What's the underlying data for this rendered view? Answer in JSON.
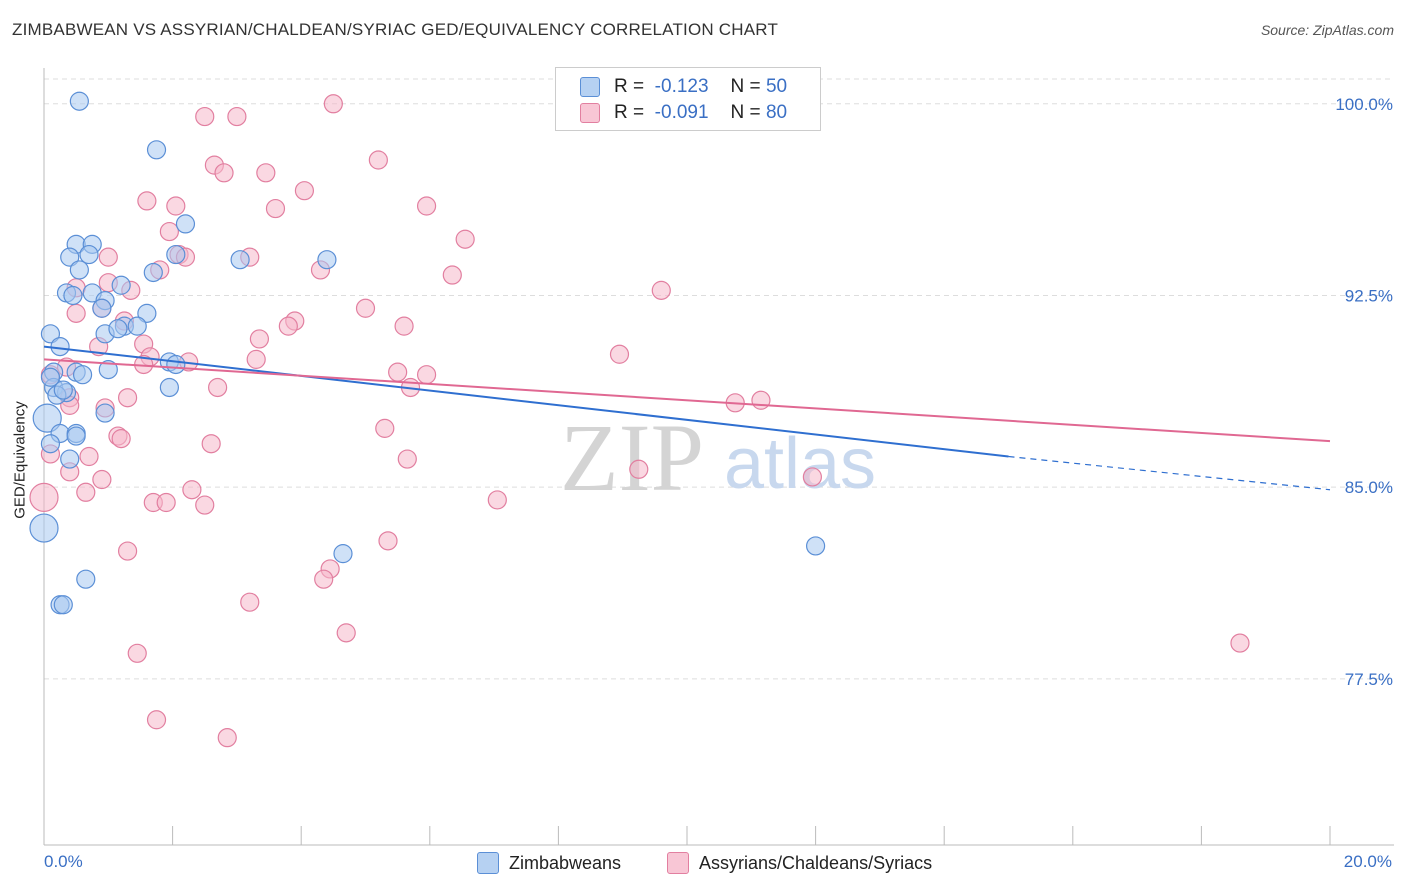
{
  "header": {
    "title": "ZIMBABWEAN VS ASSYRIAN/CHALDEAN/SYRIAC GED/EQUIVALENCY CORRELATION CHART",
    "source": "Source: ZipAtlas.com"
  },
  "watermark": {
    "zip": "ZIP",
    "atlas": "atlas"
  },
  "colors": {
    "blue_fill": "#a8c8f0",
    "blue_stroke": "#5b8fd6",
    "blue_line": "#2f6fd0",
    "pink_fill": "#f6b8cb",
    "pink_stroke": "#e27fa0",
    "pink_line": "#e06892",
    "axis_text": "#3a6fc4",
    "grid": "#dddddd"
  },
  "legend_top": {
    "rows": [
      {
        "r_label": "R =",
        "r_value": "-0.123",
        "n_label": "N =",
        "n_value": "50"
      },
      {
        "r_label": "R =",
        "r_value": "-0.091",
        "n_label": "N =",
        "n_value": "80"
      }
    ]
  },
  "legend_bottom": {
    "items": [
      "Zimbabweans",
      "Assyrians/Chaldeans/Syriacs"
    ]
  },
  "chart_data": {
    "type": "scatter",
    "title": "ZIMBABWEAN VS ASSYRIAN/CHALDEAN/SYRIAC GED/EQUIVALENCY CORRELATION CHART",
    "xlabel": "",
    "ylabel": "GED/Equivalency",
    "xlim": [
      0,
      20
    ],
    "ylim": [
      71.0,
      101.4
    ],
    "x_tick_labels": [
      "0.0%",
      "20.0%"
    ],
    "y_ticks": [
      100.0,
      92.5,
      85.0,
      77.5
    ],
    "y_tick_labels": [
      "100.0%",
      "92.5%",
      "85.0%",
      "77.5%"
    ],
    "grid": true,
    "legend_position": "top-center",
    "series": [
      {
        "name": "Zimbabweans",
        "r": -0.123,
        "n": 50,
        "trend": {
          "x0": 0.0,
          "y0": 90.5,
          "x1": 15.0,
          "y1": 86.2,
          "dash_to_x": 20.0,
          "dash_to_y": 84.9
        },
        "points": [
          [
            0.55,
            100.1
          ],
          [
            1.75,
            98.2
          ],
          [
            0.5,
            94.5
          ],
          [
            0.75,
            94.5
          ],
          [
            0.4,
            94.0
          ],
          [
            0.7,
            94.1
          ],
          [
            2.2,
            95.3
          ],
          [
            2.05,
            94.1
          ],
          [
            3.05,
            93.9
          ],
          [
            4.4,
            93.9
          ],
          [
            1.7,
            93.4
          ],
          [
            0.55,
            93.5
          ],
          [
            0.35,
            92.6
          ],
          [
            0.75,
            92.6
          ],
          [
            0.95,
            92.3
          ],
          [
            0.9,
            92.0
          ],
          [
            1.2,
            92.9
          ],
          [
            1.6,
            91.8
          ],
          [
            0.1,
            91.0
          ],
          [
            1.25,
            91.3
          ],
          [
            0.95,
            91.0
          ],
          [
            1.15,
            91.2
          ],
          [
            0.25,
            90.5
          ],
          [
            0.5,
            89.5
          ],
          [
            1.0,
            89.6
          ],
          [
            1.95,
            89.9
          ],
          [
            0.15,
            89.5
          ],
          [
            0.15,
            88.9
          ],
          [
            0.35,
            88.7
          ],
          [
            0.2,
            88.6
          ],
          [
            1.95,
            88.9
          ],
          [
            0.95,
            87.9
          ],
          [
            0.05,
            87.7
          ],
          [
            0.25,
            87.1
          ],
          [
            0.5,
            87.1
          ],
          [
            0.5,
            87.0
          ],
          [
            0.1,
            86.7
          ],
          [
            0.4,
            86.1
          ],
          [
            0.0,
            83.4
          ],
          [
            4.65,
            82.4
          ],
          [
            12.0,
            82.7
          ],
          [
            0.65,
            81.4
          ],
          [
            0.25,
            80.4
          ],
          [
            0.3,
            80.4
          ],
          [
            0.1,
            89.3
          ],
          [
            0.45,
            92.5
          ],
          [
            1.45,
            91.3
          ],
          [
            2.05,
            89.8
          ],
          [
            0.3,
            88.8
          ],
          [
            0.6,
            89.4
          ]
        ]
      },
      {
        "name": "Assyrians/Chaldeans/Syriacs",
        "r": -0.091,
        "n": 80,
        "trend": {
          "x0": 0.0,
          "y0": 90.0,
          "x1": 20.0,
          "y1": 86.8
        },
        "points": [
          [
            4.5,
            100.0
          ],
          [
            2.5,
            99.5
          ],
          [
            3.0,
            99.5
          ],
          [
            5.2,
            97.8
          ],
          [
            2.65,
            97.6
          ],
          [
            2.8,
            97.3
          ],
          [
            3.45,
            97.3
          ],
          [
            4.05,
            96.6
          ],
          [
            1.6,
            96.2
          ],
          [
            2.05,
            96.0
          ],
          [
            3.6,
            95.9
          ],
          [
            5.95,
            96.0
          ],
          [
            1.95,
            95.0
          ],
          [
            6.55,
            94.7
          ],
          [
            2.1,
            94.1
          ],
          [
            2.2,
            94.0
          ],
          [
            3.2,
            94.0
          ],
          [
            1.0,
            94.0
          ],
          [
            1.8,
            93.5
          ],
          [
            4.3,
            93.5
          ],
          [
            6.35,
            93.3
          ],
          [
            1.0,
            93.0
          ],
          [
            1.35,
            92.7
          ],
          [
            0.5,
            92.8
          ],
          [
            9.6,
            92.7
          ],
          [
            5.0,
            92.0
          ],
          [
            0.9,
            92.0
          ],
          [
            0.5,
            91.8
          ],
          [
            1.25,
            91.5
          ],
          [
            3.9,
            91.5
          ],
          [
            3.8,
            91.3
          ],
          [
            5.6,
            91.3
          ],
          [
            3.35,
            90.8
          ],
          [
            0.85,
            90.5
          ],
          [
            1.55,
            90.6
          ],
          [
            8.95,
            90.2
          ],
          [
            1.65,
            90.1
          ],
          [
            2.25,
            89.9
          ],
          [
            1.55,
            89.8
          ],
          [
            0.35,
            89.7
          ],
          [
            0.1,
            89.4
          ],
          [
            5.5,
            89.5
          ],
          [
            5.95,
            89.4
          ],
          [
            2.7,
            88.9
          ],
          [
            5.7,
            88.9
          ],
          [
            0.4,
            88.5
          ],
          [
            1.3,
            88.5
          ],
          [
            0.4,
            88.2
          ],
          [
            0.95,
            88.1
          ],
          [
            10.75,
            88.3
          ],
          [
            11.15,
            88.4
          ],
          [
            1.15,
            87.0
          ],
          [
            1.2,
            86.9
          ],
          [
            5.3,
            87.3
          ],
          [
            2.6,
            86.7
          ],
          [
            0.7,
            86.2
          ],
          [
            5.65,
            86.1
          ],
          [
            0.1,
            86.3
          ],
          [
            0.4,
            85.6
          ],
          [
            0.9,
            85.3
          ],
          [
            9.25,
            85.7
          ],
          [
            11.95,
            85.4
          ],
          [
            0.65,
            84.8
          ],
          [
            2.3,
            84.9
          ],
          [
            2.5,
            84.3
          ],
          [
            1.7,
            84.4
          ],
          [
            1.9,
            84.4
          ],
          [
            7.05,
            84.5
          ],
          [
            0.0,
            84.6
          ],
          [
            5.35,
            82.9
          ],
          [
            1.3,
            82.5
          ],
          [
            4.45,
            81.8
          ],
          [
            4.35,
            81.4
          ],
          [
            3.2,
            80.5
          ],
          [
            4.7,
            79.3
          ],
          [
            18.6,
            78.9
          ],
          [
            1.45,
            78.5
          ],
          [
            1.75,
            75.9
          ],
          [
            2.85,
            75.2
          ],
          [
            3.3,
            90.0
          ]
        ]
      }
    ]
  }
}
